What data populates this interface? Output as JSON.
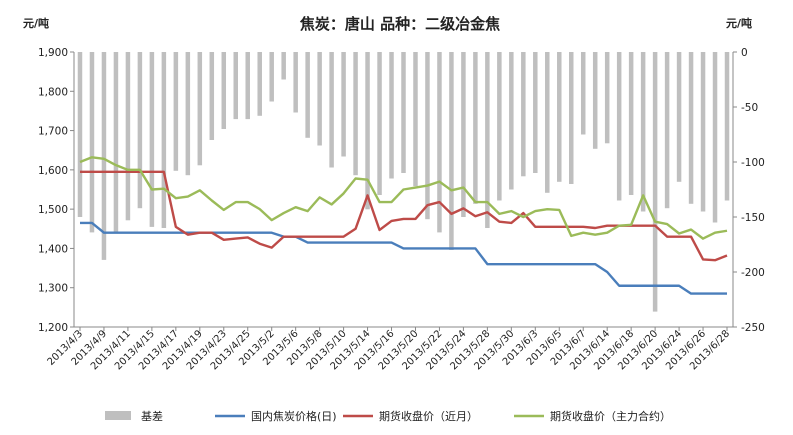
{
  "chart_data": {
    "type": "bar+line",
    "title": "焦炭：唐山  品种：二级冶金焦",
    "ylabel_left": "元/吨",
    "ylabel_right": "元/吨",
    "ylim_left": [
      1200,
      1900
    ],
    "yticks_left": [
      "1,200",
      "1,300",
      "1,400",
      "1,500",
      "1,600",
      "1,700",
      "1,800",
      "1,900"
    ],
    "ylim_right": [
      -250,
      0
    ],
    "yticks_right": [
      "-250",
      "-200",
      "-150",
      "-100",
      "-50",
      "0"
    ],
    "x": [
      "2013/4/3",
      "2013/4/8",
      "2013/4/9",
      "2013/4/10",
      "2013/4/11",
      "2013/4/12",
      "2013/4/15",
      "2013/4/16",
      "2013/4/17",
      "2013/4/18",
      "2013/4/19",
      "2013/4/22",
      "2013/4/23",
      "2013/4/24",
      "2013/4/25",
      "2013/4/26",
      "2013/5/2",
      "2013/5/3",
      "2013/5/6",
      "2013/5/7",
      "2013/5/8",
      "2013/5/9",
      "2013/5/10",
      "2013/5/13",
      "2013/5/14",
      "2013/5/15",
      "2013/5/16",
      "2013/5/17",
      "2013/5/20",
      "2013/5/21",
      "2013/5/22",
      "2013/5/23",
      "2013/5/24",
      "2013/5/27",
      "2013/5/28",
      "2013/5/29",
      "2013/5/30",
      "2013/5/31",
      "2013/6/3",
      "2013/6/4",
      "2013/6/5",
      "2013/6/6",
      "2013/6/7",
      "2013/6/13",
      "2013/6/14",
      "2013/6/17",
      "2013/6/18",
      "2013/6/19",
      "2013/6/20",
      "2013/6/21",
      "2013/6/24",
      "2013/6/25",
      "2013/6/26",
      "2013/6/27",
      "2013/6/28"
    ],
    "x_tick_labels": [
      "2013/4/3",
      "2013/4/9",
      "2013/4/11",
      "2013/4/15",
      "2013/4/17",
      "2013/4/19",
      "2013/4/23",
      "2013/4/25",
      "2013/5/2",
      "2013/5/6",
      "2013/5/8",
      "2013/5/10",
      "2013/5/14",
      "2013/5/16",
      "2013/5/20",
      "2013/5/22",
      "2013/5/24",
      "2013/5/28",
      "2013/5/30",
      "2013/6/3",
      "2013/6/5",
      "2013/6/7",
      "2013/6/14",
      "2013/6/18",
      "2013/6/20",
      "2013/6/24",
      "2013/6/26",
      "2013/6/28"
    ],
    "series": [
      {
        "name": "基差",
        "type": "bar",
        "axis": "right",
        "color": "#bfbfbf",
        "values": [
          -150,
          -164,
          -189,
          -165,
          -153,
          -142,
          -159,
          -160,
          -108,
          -112,
          -103,
          -80,
          -70,
          -61,
          -61,
          -58,
          -45,
          -25,
          -55,
          -78,
          -85,
          -105,
          -95,
          -112,
          -143,
          -130,
          -115,
          -110,
          -122,
          -152,
          -164,
          -180,
          -150,
          -138,
          -160,
          -135,
          -125,
          -113,
          -110,
          -128,
          -118,
          -120,
          -75,
          -88,
          -83,
          -135,
          -130,
          -145,
          -236,
          -142,
          -118,
          -138,
          -145,
          -155,
          -135
        ]
      },
      {
        "name": "国内焦炭价格(日)",
        "type": "line",
        "axis": "left",
        "color": "#4a7ebb",
        "values": [
          1465,
          1465,
          1440,
          1440,
          1440,
          1440,
          1440,
          1440,
          1440,
          1440,
          1440,
          1440,
          1440,
          1440,
          1440,
          1440,
          1440,
          1430,
          1430,
          1415,
          1415,
          1415,
          1415,
          1415,
          1415,
          1415,
          1415,
          1400,
          1400,
          1400,
          1400,
          1400,
          1400,
          1400,
          1360,
          1360,
          1360,
          1360,
          1360,
          1360,
          1360,
          1360,
          1360,
          1360,
          1340,
          1305,
          1305,
          1305,
          1305,
          1305,
          1305,
          1285,
          1285,
          1285,
          1285
        ]
      },
      {
        "name": "期货收盘价（近月）",
        "type": "line",
        "axis": "left",
        "color": "#be4b48",
        "values": [
          1595,
          1595,
          1595,
          1595,
          1595,
          1595,
          1595,
          1595,
          1455,
          1435,
          1440,
          1440,
          1422,
          1425,
          1428,
          1412,
          1402,
          1430,
          1430,
          1430,
          1430,
          1430,
          1430,
          1450,
          1535,
          1447,
          1470,
          1475,
          1475,
          1510,
          1518,
          1488,
          1502,
          1482,
          1492,
          1468,
          1465,
          1490,
          1455,
          1455,
          1455,
          1455,
          1455,
          1452,
          1458,
          1458,
          1458,
          1458,
          1458,
          1430,
          1430,
          1430,
          1372,
          1370,
          1382
        ]
      },
      {
        "name": "期货收盘价（主力合约）",
        "type": "line",
        "axis": "left",
        "color": "#9bbb59",
        "values": [
          1620,
          1632,
          1628,
          1612,
          1600,
          1600,
          1550,
          1552,
          1528,
          1532,
          1548,
          1522,
          1498,
          1518,
          1518,
          1500,
          1472,
          1490,
          1505,
          1495,
          1530,
          1512,
          1540,
          1578,
          1575,
          1518,
          1518,
          1550,
          1555,
          1560,
          1570,
          1548,
          1555,
          1518,
          1518,
          1488,
          1495,
          1480,
          1495,
          1500,
          1498,
          1432,
          1440,
          1435,
          1440,
          1458,
          1460,
          1535,
          1468,
          1462,
          1438,
          1448,
          1425,
          1440,
          1445
        ]
      }
    ],
    "legend": {
      "position": "bottom",
      "entries": [
        "基差",
        "国内焦炭价格(日)",
        "期货收盘价（近月）",
        "期货收盘价（主力合约）"
      ]
    },
    "grid": false
  }
}
